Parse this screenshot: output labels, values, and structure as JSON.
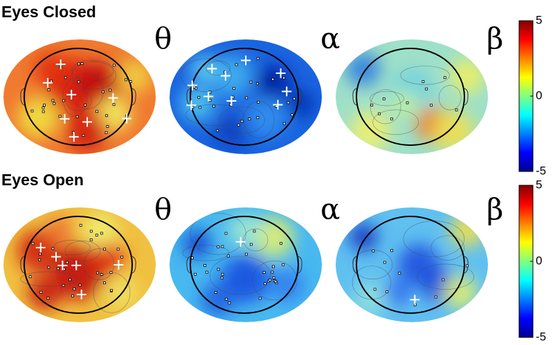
{
  "rows": [
    {
      "title": "Eyes Closed",
      "maps": [
        {
          "label": "θ"
        },
        {
          "label": "α"
        },
        {
          "label": "β"
        }
      ],
      "colorbar": {
        "lim": [
          -5,
          5
        ],
        "ticks": [
          5,
          0,
          -5
        ]
      }
    },
    {
      "title": "Eyes Open",
      "maps": [
        {
          "label": "θ"
        },
        {
          "label": "α"
        },
        {
          "label": "β"
        }
      ],
      "colorbar": {
        "lim": [
          -5,
          5
        ],
        "ticks": [
          5,
          0,
          -5
        ]
      }
    }
  ]
}
